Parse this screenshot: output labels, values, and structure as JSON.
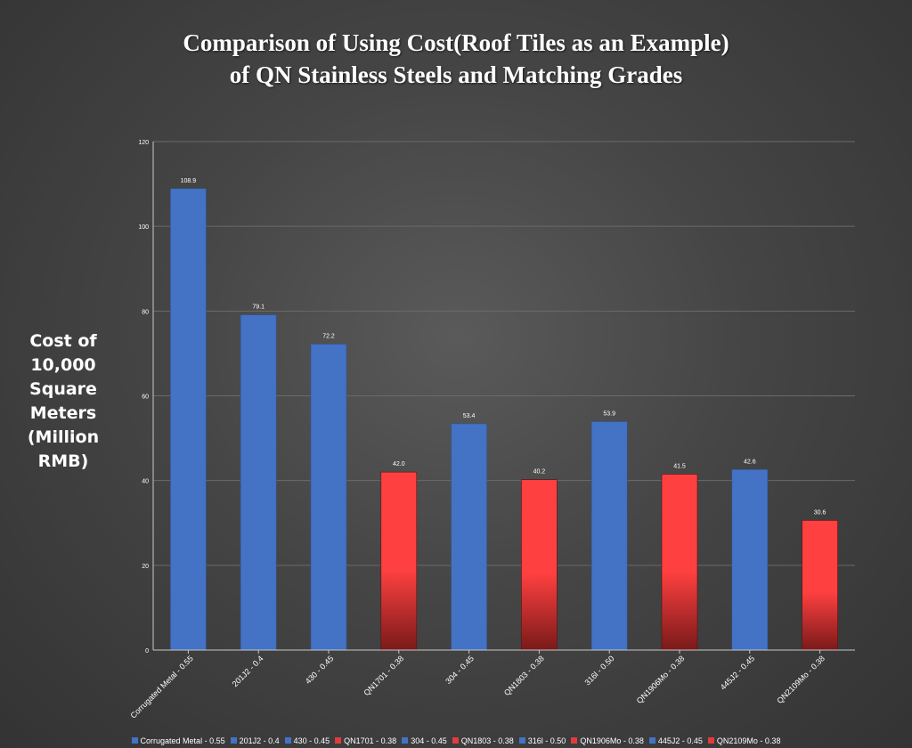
{
  "chart_data": {
    "type": "bar",
    "title_line1": "Comparison of Using Cost(Roof Tiles as an Example)",
    "title_line2": "of QN Stainless Steels and Matching Grades",
    "ylabel_lines": [
      "Cost of",
      "10,000",
      "Square Meters",
      "(Million RMB)"
    ],
    "xlabel": "",
    "ylim": [
      0,
      120
    ],
    "yticks": [
      0,
      20,
      40,
      60,
      80,
      100,
      120
    ],
    "grid": true,
    "legend_position": "bottom",
    "categories": [
      "Corrugated Metal - 0.55",
      "201J2 - 0.4",
      "430 - 0.45",
      "QN1701 - 0.38",
      "304 - 0.45",
      "QN1803 - 0.38",
      "316l - 0.50",
      "QN1906Mo - 0.38",
      "445J2 - 0.45",
      "QN2109Mo - 0.38"
    ],
    "values": [
      108.9,
      79.1,
      72.2,
      42.0,
      53.4,
      40.2,
      53.9,
      41.5,
      42.6,
      30.6
    ],
    "value_labels": [
      "108.9",
      "79.1",
      "72.2",
      "42.0",
      "53.4",
      "40.2",
      "53.9",
      "41.5",
      "42.6",
      "30.6"
    ],
    "bar_groups": [
      "blue",
      "blue",
      "blue",
      "red",
      "blue",
      "red",
      "blue",
      "red",
      "blue",
      "red"
    ],
    "colors": {
      "blue": "#4472c4",
      "red_top": "#ff4040",
      "red_bottom": "#7a1a1a",
      "legend_red": "#e03c3c"
    }
  }
}
